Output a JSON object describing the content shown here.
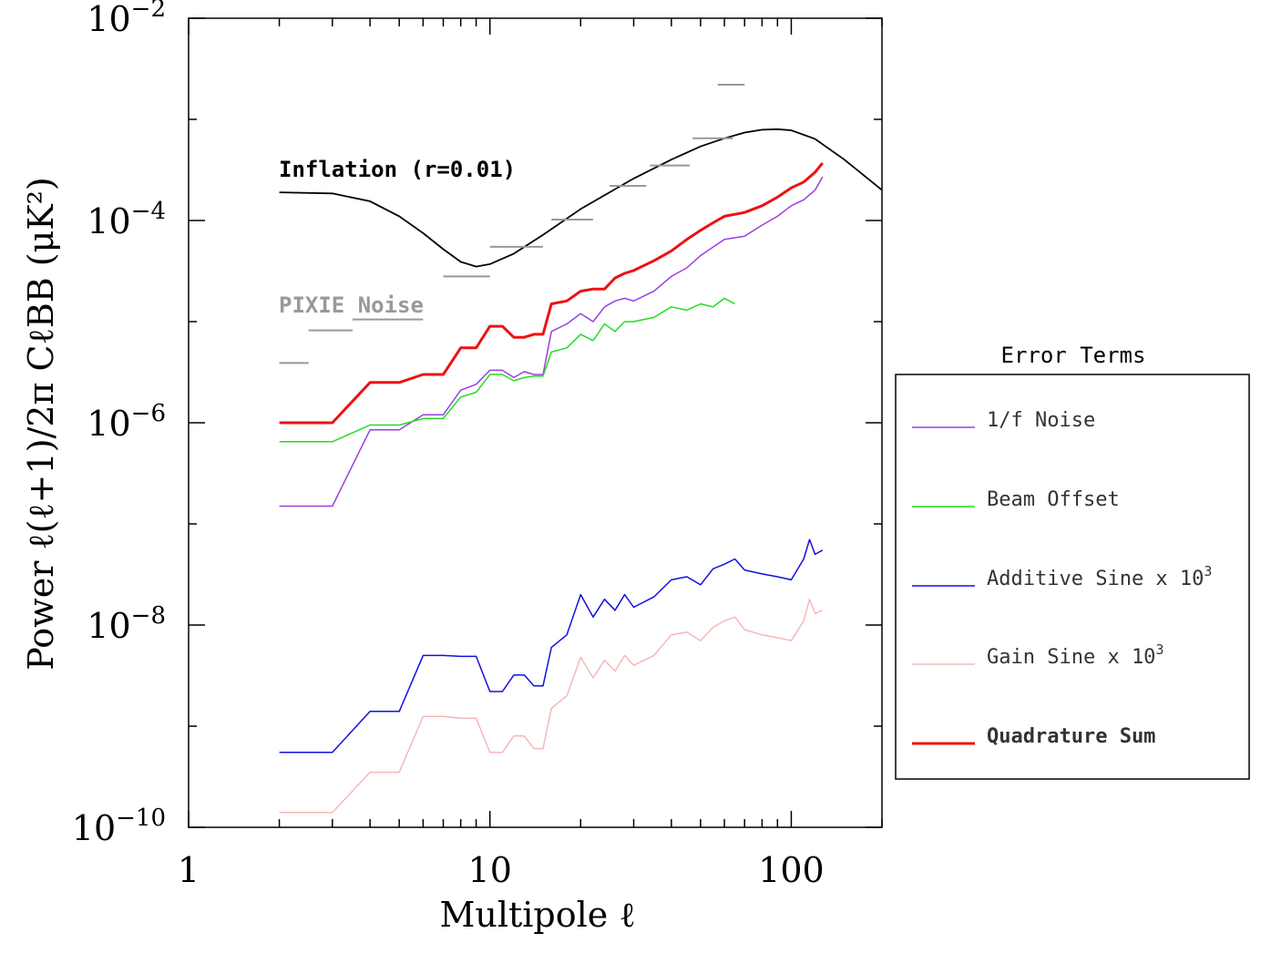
{
  "chart_data": {
    "type": "line",
    "xscale": "log",
    "yscale": "log",
    "xlim": [
      1,
      200
    ],
    "ylim": [
      1e-10,
      0.01
    ],
    "xticks": [
      {
        "value": 1,
        "label": "1"
      },
      {
        "value": 10,
        "label": "10"
      },
      {
        "value": 100,
        "label": "100"
      }
    ],
    "yticks": [
      {
        "value": 1e-10,
        "base": "10",
        "exp": "−10"
      },
      {
        "value": 1e-08,
        "base": "10",
        "exp": "−8"
      },
      {
        "value": 1e-06,
        "base": "10",
        "exp": "−6"
      },
      {
        "value": 0.0001,
        "base": "10",
        "exp": "−4"
      },
      {
        "value": 0.01,
        "base": "10",
        "exp": "−2"
      }
    ],
    "xlabel": "Multipole ℓ",
    "ylabel": "Power ℓ(ℓ+1)/2π  CℓBB (μK²)",
    "annotations": {
      "inflation": "Inflation (r=0.01)",
      "pixie": "PIXIE Noise"
    },
    "inflation": {
      "name": "Inflation (r=0.01)",
      "color": "#000000",
      "x": [
        2,
        3,
        4,
        5,
        6,
        7,
        8,
        9,
        10,
        12,
        15,
        20,
        30,
        40,
        50,
        60,
        70,
        80,
        90,
        100,
        120,
        150,
        200
      ],
      "y": [
        0.00019,
        0.000185,
        0.000155,
        0.00011,
        7.5e-05,
        5.2e-05,
        3.9e-05,
        3.5e-05,
        3.7e-05,
        4.7e-05,
        7.2e-05,
        0.00013,
        0.00026,
        0.0004,
        0.00054,
        0.00065,
        0.00074,
        0.00079,
        0.0008,
        0.00078,
        0.00064,
        0.0004,
        0.0002
      ]
    },
    "pixie_noise": {
      "name": "PIXIE Noise",
      "color": "#999999",
      "segments": [
        {
          "x": [
            2,
            2.5
          ],
          "y": 3.9e-06
        },
        {
          "x": [
            2.5,
            3.5
          ],
          "y": 8.2e-06
        },
        {
          "x": [
            3.5,
            6
          ],
          "y": 1.05e-05
        },
        {
          "x": [
            7,
            10
          ],
          "y": 2.8e-05
        },
        {
          "x": [
            10,
            15
          ],
          "y": 5.5e-05
        },
        {
          "x": [
            16,
            22
          ],
          "y": 0.000102
        },
        {
          "x": [
            25,
            33
          ],
          "y": 0.00022
        },
        {
          "x": [
            34,
            46
          ],
          "y": 0.00035
        },
        {
          "x": [
            47,
            64
          ],
          "y": 0.00065
        },
        {
          "x": [
            57,
            70
          ],
          "y": 0.0022
        }
      ]
    },
    "series": [
      {
        "name": "1/f Noise",
        "color": "#9b3fe0",
        "width": 1.5,
        "x": [
          2,
          3,
          4,
          5,
          6,
          7,
          8,
          9,
          10,
          11,
          12,
          13,
          14,
          15,
          16,
          18,
          20,
          22,
          24,
          26,
          28,
          30,
          35,
          40,
          45,
          50,
          60,
          70,
          80,
          90,
          100,
          110,
          120,
          127
        ],
        "y": [
          1.5e-07,
          1.5e-07,
          8.5e-07,
          8.5e-07,
          1.2e-06,
          1.2e-06,
          2.1e-06,
          2.4e-06,
          3.3e-06,
          3.3e-06,
          2.8e-06,
          3.2e-06,
          3e-06,
          3e-06,
          8e-06,
          9.5e-06,
          1.2e-05,
          1e-05,
          1.4e-05,
          1.6e-05,
          1.7e-05,
          1.6e-05,
          2e-05,
          2.8e-05,
          3.4e-05,
          4.5e-05,
          6.5e-05,
          7e-05,
          9e-05,
          0.00011,
          0.00014,
          0.00016,
          0.0002,
          0.00027
        ]
      },
      {
        "name": "Beam Offset",
        "color": "#22dd22",
        "width": 1.5,
        "x": [
          2,
          3,
          4,
          5,
          6,
          7,
          8,
          9,
          10,
          11,
          12,
          13,
          14,
          15,
          16,
          18,
          20,
          22,
          24,
          26,
          28,
          30,
          35,
          40,
          45,
          50,
          55,
          60,
          65
        ],
        "y": [
          6.5e-07,
          6.5e-07,
          9.5e-07,
          9.5e-07,
          1.1e-06,
          1.1e-06,
          1.8e-06,
          2e-06,
          3e-06,
          3e-06,
          2.6e-06,
          2.8e-06,
          2.9e-06,
          2.9e-06,
          5e-06,
          5.5e-06,
          7.5e-06,
          6.5e-06,
          9.5e-06,
          8e-06,
          1e-05,
          1e-05,
          1.1e-05,
          1.4e-05,
          1.3e-05,
          1.5e-05,
          1.4e-05,
          1.7e-05,
          1.5e-05
        ]
      },
      {
        "name": "Additive Sine  x 10",
        "sup": "3",
        "color": "#1010e0",
        "width": 1.5,
        "x": [
          2,
          3,
          4,
          5,
          6,
          7,
          8,
          9,
          10,
          11,
          12,
          13,
          14,
          15,
          16,
          18,
          20,
          22,
          24,
          26,
          28,
          30,
          35,
          40,
          45,
          50,
          55,
          60,
          65,
          70,
          80,
          90,
          100,
          110,
          115,
          120,
          127
        ],
        "y": [
          5.5e-10,
          5.5e-10,
          1.4e-09,
          1.4e-09,
          5e-09,
          5e-09,
          4.9e-09,
          4.9e-09,
          2.2e-09,
          2.2e-09,
          3.2e-09,
          3.2e-09,
          2.5e-09,
          2.5e-09,
          6e-09,
          8e-09,
          2e-08,
          1.2e-08,
          1.8e-08,
          1.4e-08,
          2e-08,
          1.5e-08,
          1.9e-08,
          2.8e-08,
          3e-08,
          2.5e-08,
          3.6e-08,
          4e-08,
          4.5e-08,
          3.5e-08,
          3.2e-08,
          3e-08,
          2.8e-08,
          4.5e-08,
          7e-08,
          5e-08,
          5.5e-08
        ]
      },
      {
        "name": "Gain Sine x 10",
        "sup": "3",
        "color": "#f5b8b8",
        "width": 1.5,
        "x": [
          2,
          3,
          4,
          5,
          6,
          7,
          8,
          9,
          10,
          11,
          12,
          13,
          14,
          15,
          16,
          18,
          20,
          22,
          24,
          26,
          28,
          30,
          35,
          40,
          45,
          50,
          55,
          60,
          65,
          70,
          80,
          90,
          100,
          110,
          115,
          120,
          127
        ],
        "y": [
          1.4e-10,
          1.4e-10,
          3.5e-10,
          3.5e-10,
          1.25e-09,
          1.25e-09,
          1.2e-09,
          1.2e-09,
          5.5e-10,
          5.5e-10,
          8e-10,
          8e-10,
          6e-10,
          6e-10,
          1.5e-09,
          2e-09,
          4.8e-09,
          3e-09,
          4.5e-09,
          3.5e-09,
          5e-09,
          4e-09,
          5e-09,
          8e-09,
          8.5e-09,
          7e-09,
          9.5e-09,
          1.1e-08,
          1.2e-08,
          9e-09,
          8e-09,
          7.5e-09,
          7e-09,
          1.1e-08,
          1.8e-08,
          1.3e-08,
          1.4e-08
        ]
      },
      {
        "name": "Quadrature Sum",
        "bold": true,
        "color": "#ee1111",
        "width": 3,
        "x": [
          2,
          3,
          4,
          5,
          6,
          7,
          8,
          9,
          10,
          11,
          12,
          13,
          14,
          15,
          16,
          18,
          20,
          22,
          24,
          26,
          28,
          30,
          35,
          40,
          45,
          50,
          55,
          60,
          70,
          80,
          90,
          100,
          110,
          120,
          127
        ],
        "y": [
          1e-06,
          1e-06,
          2.5e-06,
          2.5e-06,
          3e-06,
          3e-06,
          5.5e-06,
          5.5e-06,
          9e-06,
          9e-06,
          7e-06,
          7e-06,
          7.5e-06,
          7.5e-06,
          1.5e-05,
          1.6e-05,
          2e-05,
          2.1e-05,
          2.1e-05,
          2.7e-05,
          3e-05,
          3.2e-05,
          4e-05,
          5e-05,
          6.5e-05,
          8e-05,
          9.5e-05,
          0.00011,
          0.00012,
          0.00014,
          0.00017,
          0.00021,
          0.00024,
          0.0003,
          0.00037
        ]
      }
    ],
    "legend": {
      "title": "Error Terms",
      "placement": "right"
    }
  }
}
